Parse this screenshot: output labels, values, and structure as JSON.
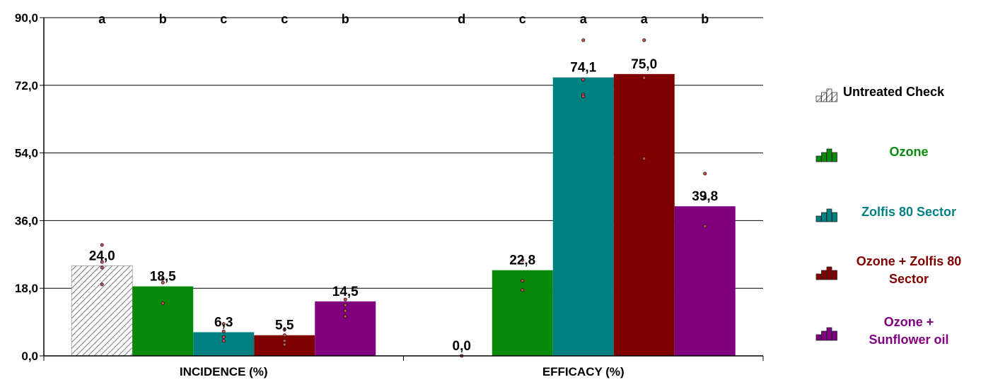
{
  "chart_data": {
    "type": "bar",
    "categories": [
      "INCIDENCE (%)",
      "EFFICACY (%)"
    ],
    "yticks": [
      "0,0",
      "18,0",
      "36,0",
      "54,0",
      "72,0",
      "90,0"
    ],
    "ylim": [
      0,
      90
    ],
    "grid": true,
    "legend_position": "right",
    "series": [
      {
        "name": "Untreated Check",
        "color": "#ffffff",
        "pattern": "hatch",
        "values": [
          24.0,
          0.0
        ],
        "labels": [
          "24,0",
          "0,0"
        ],
        "letters": [
          "a",
          "d"
        ]
      },
      {
        "name": "Ozone",
        "color": "#0a8a0a",
        "values": [
          18.5,
          22.8
        ],
        "labels": [
          "18,5",
          "22,8"
        ],
        "letters": [
          "b",
          "c"
        ]
      },
      {
        "name": "Zolfis 80 Sector",
        "color": "#008080",
        "values": [
          6.3,
          74.1
        ],
        "labels": [
          "6,3",
          "74,1"
        ],
        "letters": [
          "c",
          "a"
        ]
      },
      {
        "name": "Ozone + Zolfis 80 Sector",
        "legend_lines": [
          "Ozone + Zolfis 80",
          "Sector"
        ],
        "color": "#800000",
        "values": [
          5.5,
          75.0
        ],
        "labels": [
          "5,5",
          "75,0"
        ],
        "letters": [
          "c",
          "a"
        ]
      },
      {
        "name": "Ozone + Sunflower oil",
        "legend_lines": [
          "Ozone +",
          "Sunflower oil"
        ],
        "color": "#800080",
        "values": [
          14.5,
          39.8
        ],
        "labels": [
          "14,5",
          "39,8"
        ],
        "letters": [
          "b",
          "b"
        ]
      }
    ],
    "points": [
      [
        [
          29.5,
          25.0,
          23.5,
          19.0
        ],
        [
          0.0
        ]
      ],
      [
        [
          20.5,
          19.5,
          14.0
        ],
        [
          25.5,
          20.0,
          17.5
        ]
      ],
      [
        [
          8.5,
          6.5,
          5.0,
          4.0
        ],
        [
          84.0,
          73.5,
          69.5,
          69.0
        ]
      ],
      [
        [
          7.0,
          5.5,
          4.0,
          3.0
        ],
        [
          84.0,
          74.0,
          52.5
        ]
      ],
      [
        [
          15.0,
          13.5,
          12.0,
          10.5
        ],
        [
          48.5,
          42.0,
          34.5
        ]
      ]
    ]
  }
}
